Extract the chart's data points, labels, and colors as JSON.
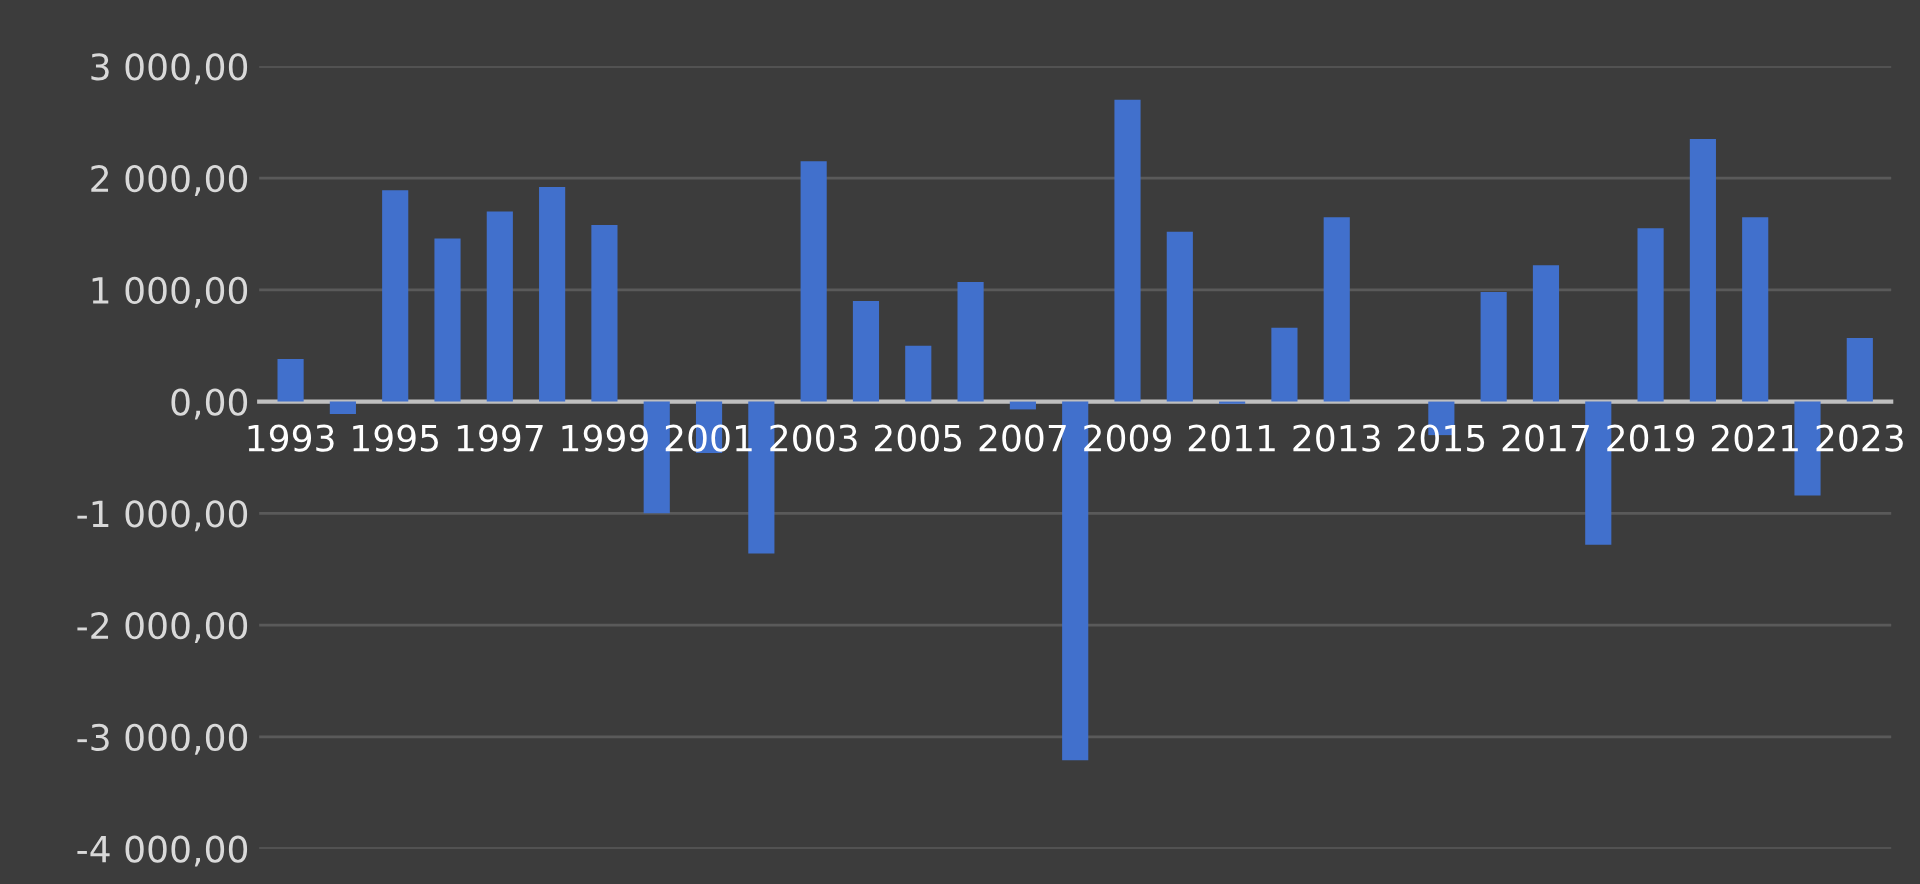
{
  "chart_data": {
    "type": "bar",
    "categories": [
      "1993",
      null,
      "1995",
      null,
      "1997",
      null,
      "1999",
      null,
      "2001",
      null,
      "2003",
      null,
      "2005",
      null,
      "2007",
      null,
      "2009",
      null,
      "2011",
      null,
      "2013",
      null,
      "2015",
      null,
      "2017",
      null,
      "2019",
      null,
      "2021",
      null,
      "2023"
    ],
    "values": [
      380,
      -110,
      1890,
      1460,
      1700,
      1920,
      1580,
      -1000,
      -460,
      -1360,
      2150,
      900,
      500,
      1070,
      -70,
      -3210,
      2700,
      1520,
      -20,
      660,
      1650,
      null,
      -300,
      980,
      1220,
      -1280,
      1550,
      2350,
      1650,
      -840,
      570
    ],
    "color": "#4170cc",
    "ylim": [
      -4000,
      3000
    ],
    "yticks": [
      {
        "value": -4000,
        "label": "-4 000,00"
      },
      {
        "value": -3000,
        "label": "-3 000,00"
      },
      {
        "value": -2000,
        "label": "-2 000,00"
      },
      {
        "value": -1000,
        "label": "-1 000,00"
      },
      {
        "value": 0,
        "label": "0,00"
      },
      {
        "value": 1000,
        "label": "1 000,00"
      },
      {
        "value": 2000,
        "label": "2 000,00"
      },
      {
        "value": 3000,
        "label": "3 000,00"
      }
    ],
    "grid": "y"
  }
}
